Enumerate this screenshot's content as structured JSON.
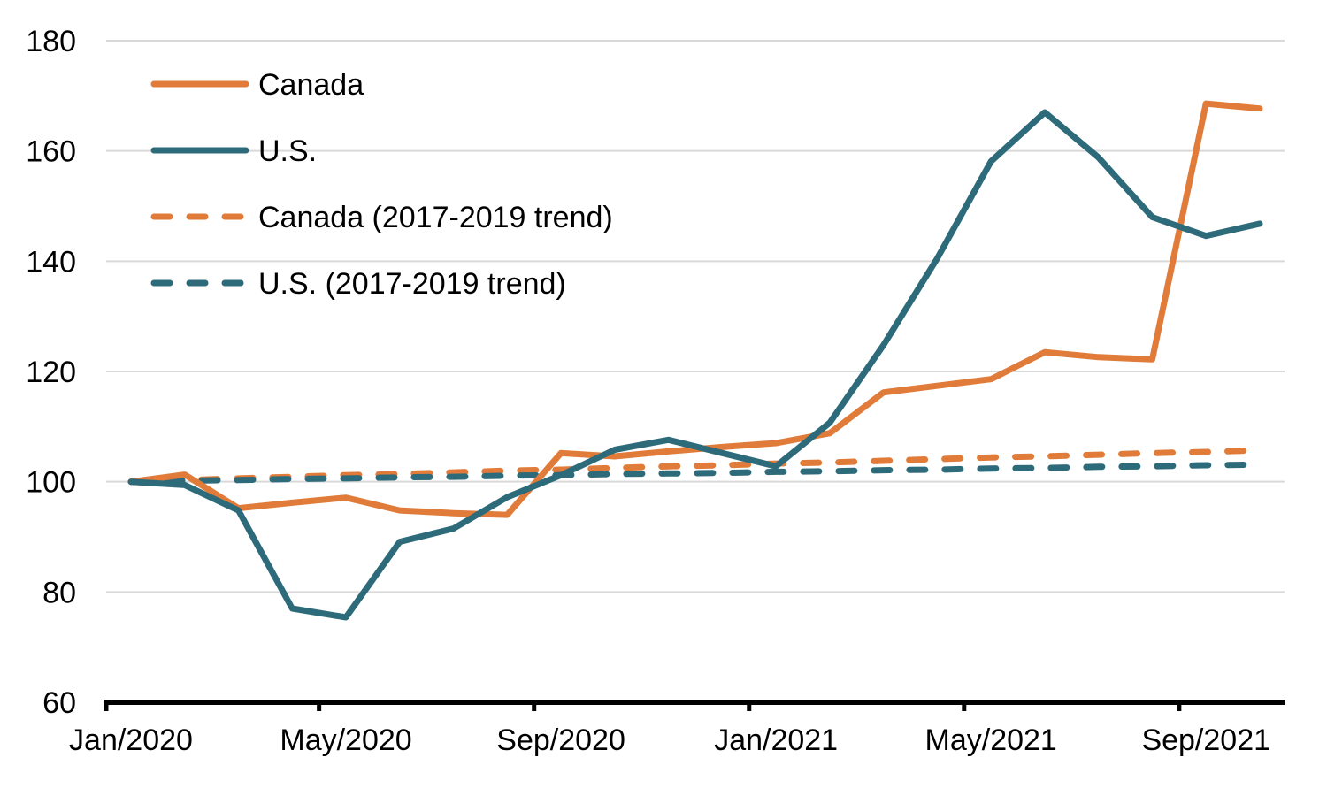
{
  "chart_data": {
    "type": "line",
    "title": "",
    "xlabel": "",
    "ylabel": "",
    "ylim": [
      60,
      180
    ],
    "yticks": [
      "60",
      "80",
      "100",
      "120",
      "140",
      "160",
      "180"
    ],
    "x": [
      "Jan/2020",
      "Feb/2020",
      "Mar/2020",
      "Apr/2020",
      "May/2020",
      "Jun/2020",
      "Jul/2020",
      "Aug/2020",
      "Sep/2020",
      "Oct/2020",
      "Nov/2020",
      "Dec/2020",
      "Jan/2021",
      "Feb/2021",
      "Mar/2021",
      "Apr/2021",
      "May/2021",
      "Jun/2021",
      "Jul/2021",
      "Aug/2021",
      "Sep/2021",
      "Oct/2021"
    ],
    "xtick_labels": [
      "Jan/2020",
      "May/2020",
      "Sep/2020",
      "Jan/2021",
      "May/2021",
      "Sep/2021"
    ],
    "xtick_indices": [
      0,
      4,
      8,
      12,
      16,
      20
    ],
    "grid": true,
    "legend_position": "top-left",
    "series": [
      {
        "name": "Canada",
        "color": "#e07b39",
        "dash": "solid",
        "values": [
          100,
          101.3,
          95.2,
          96.2,
          97.1,
          94.8,
          94.3,
          94.0,
          105.2,
          104.6,
          105.5,
          106.3,
          107.0,
          108.8,
          116.2,
          117.4,
          118.6,
          123.5,
          122.6,
          122.2,
          168.6,
          167.7
        ]
      },
      {
        "name": "U.S.",
        "color": "#2e6b7a",
        "dash": "solid",
        "values": [
          100,
          99.4,
          94.8,
          77.0,
          75.4,
          89.1,
          91.5,
          97.2,
          101.2,
          105.8,
          107.6,
          105.2,
          102.8,
          110.7,
          124.8,
          140.5,
          158.1,
          167.0,
          158.8,
          148.0,
          144.6,
          146.8
        ]
      },
      {
        "name": "Canada (2017-2019 trend)",
        "color": "#e07b39",
        "dash": "dashed",
        "values": [
          100,
          100.3,
          100.6,
          100.9,
          101.2,
          101.4,
          101.7,
          102.0,
          102.2,
          102.5,
          102.8,
          103.0,
          103.3,
          103.5,
          103.8,
          104.1,
          104.4,
          104.6,
          104.9,
          105.2,
          105.4,
          105.7
        ]
      },
      {
        "name": "U.S. (2017-2019 trend)",
        "color": "#2e6b7a",
        "dash": "dashed",
        "values": [
          100,
          100.2,
          100.3,
          100.5,
          100.6,
          100.8,
          100.9,
          101.1,
          101.2,
          101.4,
          101.5,
          101.6,
          101.8,
          101.9,
          102.1,
          102.2,
          102.4,
          102.5,
          102.7,
          102.8,
          103.0,
          103.1
        ]
      }
    ]
  }
}
